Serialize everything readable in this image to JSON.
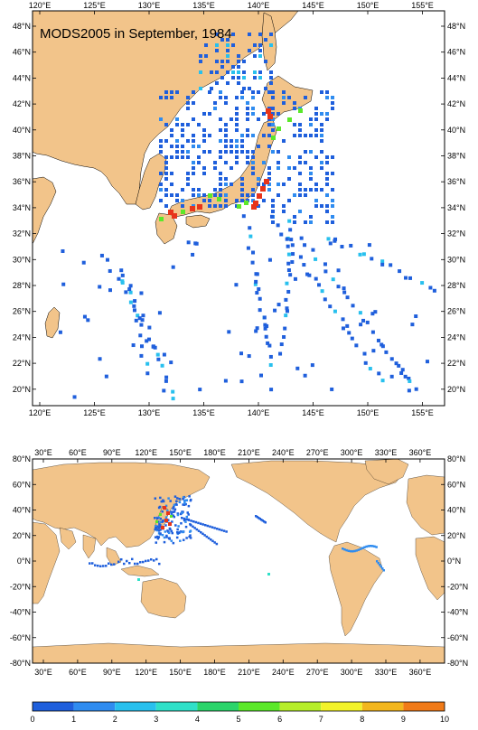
{
  "title": "MODS2005 in September, 1984",
  "colors": {
    "land": "#f2c48a",
    "ocean": "#ffffff",
    "frame": "#000000"
  },
  "regional_map": {
    "lon_labels": [
      "120°E",
      "125°E",
      "130°E",
      "135°E",
      "140°E",
      "145°E",
      "150°E",
      "155°E"
    ],
    "lat_labels": [
      "48°N",
      "46°N",
      "44°N",
      "42°N",
      "40°N",
      "38°N",
      "36°N",
      "34°N",
      "32°N",
      "30°N",
      "28°N",
      "26°N",
      "24°N",
      "22°N",
      "20°N"
    ]
  },
  "global_map": {
    "lon_labels": [
      "30°E",
      "60°E",
      "90°E",
      "120°E",
      "150°E",
      "180°E",
      "210°E",
      "240°E",
      "270°E",
      "300°E",
      "330°E",
      "360°E"
    ],
    "lat_labels": [
      "80°N",
      "60°N",
      "40°N",
      "20°N",
      "0°N",
      "-20°N",
      "-40°N",
      "-60°N",
      "-80°N"
    ]
  },
  "colorbar": {
    "labels": [
      "0",
      "1",
      "2",
      "3",
      "4",
      "5",
      "6",
      "7",
      "8",
      "9",
      "10"
    ],
    "colors": [
      "#1f5fdc",
      "#2f8cf0",
      "#28c0ee",
      "#2fe0c8",
      "#2bd46a",
      "#5be82a",
      "#b6ee2a",
      "#f2f22a",
      "#f2b61e",
      "#f07a18",
      "#e8341a"
    ]
  }
}
